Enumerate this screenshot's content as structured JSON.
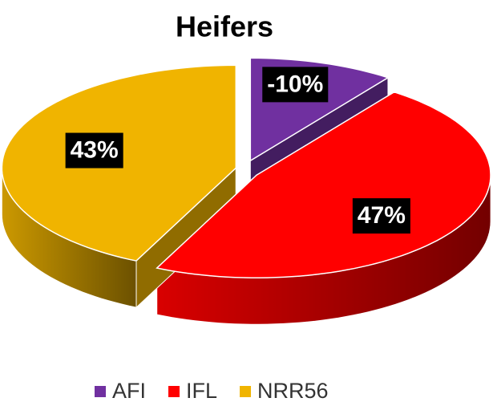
{
  "chart_data": {
    "type": "pie",
    "title": "Heifers",
    "categories": [
      "AFI",
      "IFL",
      "NRR56"
    ],
    "values": [
      -10,
      47,
      43
    ],
    "value_labels": [
      "-10%",
      "47%",
      "43%"
    ],
    "colors": [
      "#7030a0",
      "#ff0000",
      "#f0b400"
    ],
    "legend": "bottom"
  }
}
